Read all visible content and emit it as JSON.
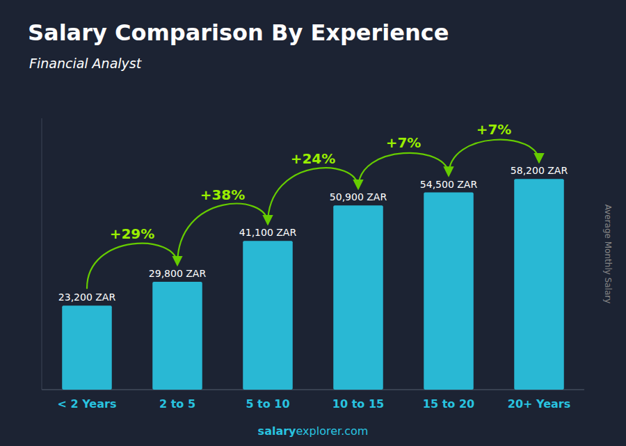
{
  "chart_data": {
    "type": "bar",
    "title": "Salary Comparison By Experience",
    "subtitle": "Financial Analyst",
    "y_label": "Average Monthly Salary",
    "source": [
      "salary",
      "explorer.com"
    ],
    "categories": [
      "< 2 Years",
      "2 to 5",
      "5 to 10",
      "10 to 15",
      "15 to 20",
      "20+ Years"
    ],
    "values": [
      23200,
      29800,
      41100,
      50900,
      54500,
      58200
    ],
    "value_labels": [
      "23,200 ZAR",
      "29,800 ZAR",
      "41,100 ZAR",
      "50,900 ZAR",
      "54,500 ZAR",
      "58,200 ZAR"
    ],
    "annotations": [
      "+29%",
      "+38%",
      "+24%",
      "+7%",
      "+7%"
    ],
    "color": "#29b8d4",
    "ylim": [
      0,
      75000
    ],
    "data_labels": true,
    "tick_labels": "x",
    "grid": false
  }
}
